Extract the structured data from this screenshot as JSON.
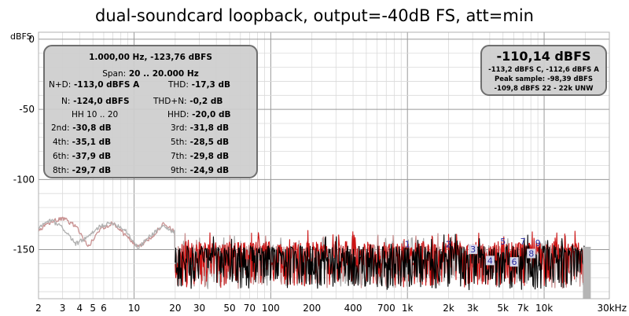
{
  "chart_data": {
    "type": "line",
    "title": "dual-soundcard loopback, output=-40dB FS, att=min",
    "ylabel": "dBFS",
    "xlabel": "",
    "x_scale": "log",
    "xlim": [
      2,
      30000
    ],
    "ylim": [
      -185,
      5
    ],
    "grid": true,
    "y_ticks": [
      0,
      -50,
      -100,
      -150
    ],
    "x_ticks": [
      {
        "value": 2,
        "label": "2"
      },
      {
        "value": 3,
        "label": "3"
      },
      {
        "value": 4,
        "label": "4"
      },
      {
        "value": 5,
        "label": "5"
      },
      {
        "value": 6,
        "label": "6"
      },
      {
        "value": 10,
        "label": "10"
      },
      {
        "value": 20,
        "label": "20"
      },
      {
        "value": 30,
        "label": "30"
      },
      {
        "value": 50,
        "label": "50"
      },
      {
        "value": 70,
        "label": "70"
      },
      {
        "value": 100,
        "label": "100"
      },
      {
        "value": 200,
        "label": "200"
      },
      {
        "value": 400,
        "label": "400"
      },
      {
        "value": 700,
        "label": "700"
      },
      {
        "value": 1000,
        "label": "1k"
      },
      {
        "value": 2000,
        "label": "2k"
      },
      {
        "value": 3000,
        "label": "3k"
      },
      {
        "value": 5000,
        "label": "5k"
      },
      {
        "value": 7000,
        "label": "7k"
      },
      {
        "value": 10000,
        "label": "10k"
      },
      {
        "value": 30000,
        "label": "30kHz"
      }
    ],
    "harmonic_markers": [
      {
        "label": "1",
        "freq": 1000,
        "level": -150
      },
      {
        "label": "2",
        "freq": 2000,
        "level": -150
      },
      {
        "label": "3",
        "freq": 3000,
        "level": -152
      },
      {
        "label": "4",
        "freq": 4000,
        "level": -160
      },
      {
        "label": "5",
        "freq": 5000,
        "level": -148
      },
      {
        "label": "6",
        "freq": 6000,
        "level": -161
      },
      {
        "label": "7",
        "freq": 7000,
        "level": -148
      },
      {
        "label": "8",
        "freq": 8000,
        "level": -155
      },
      {
        "label": "9",
        "freq": 9000,
        "level": -149
      }
    ],
    "series": [
      {
        "color": "#c89090",
        "start_hz": 2,
        "end_hz": 20000,
        "floor": -147,
        "depth": 30,
        "note_values": [
          -137,
          -130,
          -128,
          -133,
          -148,
          -135,
          -131,
          -140,
          -148,
          -142,
          -132,
          -137
        ]
      },
      {
        "color": "#b0b0b0",
        "start_hz": 2,
        "end_hz": 20000,
        "floor": -149,
        "depth": 28,
        "note_values": [
          -134,
          -129,
          -135,
          -146,
          -141,
          -133,
          -131,
          -136,
          -149,
          -140,
          -133,
          -138
        ]
      },
      {
        "color": "#cc1414",
        "start_hz": 20,
        "end_hz": 20000,
        "floor": -145,
        "depth": 32
      },
      {
        "color": "#000000",
        "start_hz": 20,
        "end_hz": 20000,
        "floor": -148,
        "depth": 30
      }
    ],
    "colors": {
      "background": "#ffffff",
      "major_grid": "#9a9a9a",
      "minor_grid": "#dadada",
      "marker_text": "#2a2aa0"
    }
  },
  "stats": {
    "header": "1.000,00 Hz, -123,76 dBFS",
    "span_label": "Span:",
    "span_value": "20 .. 20.000 Hz",
    "nd_label": "N+D:",
    "nd_value": "-113,0 dBFS A",
    "thd_label": "THD:",
    "thd_value": "-17,3 dB",
    "n_label": "N:",
    "n_value": "-124,0 dBFS",
    "thdn_label": "THD+N:",
    "thdn_value": "-0,2 dB",
    "hh_label": "HH 10 .. 20",
    "hhd_label": "HHD:",
    "hhd_value": "-20,0 dB",
    "h2_label": "2nd:",
    "h2_value": "-30,8 dB",
    "h3_label": "3rd:",
    "h3_value": "-31,8 dB",
    "h4_label": "4th:",
    "h4_value": "-35,1 dB",
    "h5_label": "5th:",
    "h5_value": "-28,5 dB",
    "h6_label": "6th:",
    "h6_value": "-37,9 dB",
    "h7_label": "7th:",
    "h7_value": "-29,8 dB",
    "h8_label": "8th:",
    "h8_value": "-29,7 dB",
    "h9_label": "9th:",
    "h9_value": "-24,9 dB"
  },
  "summary": {
    "main": "-110,14 dBFS",
    "line1": "-113,2 dBFS C, -112,6 dBFS A",
    "line2": "Peak sample: -98,39 dBFS",
    "line3": "-109,8 dBFS 22 - 22k UNW"
  }
}
